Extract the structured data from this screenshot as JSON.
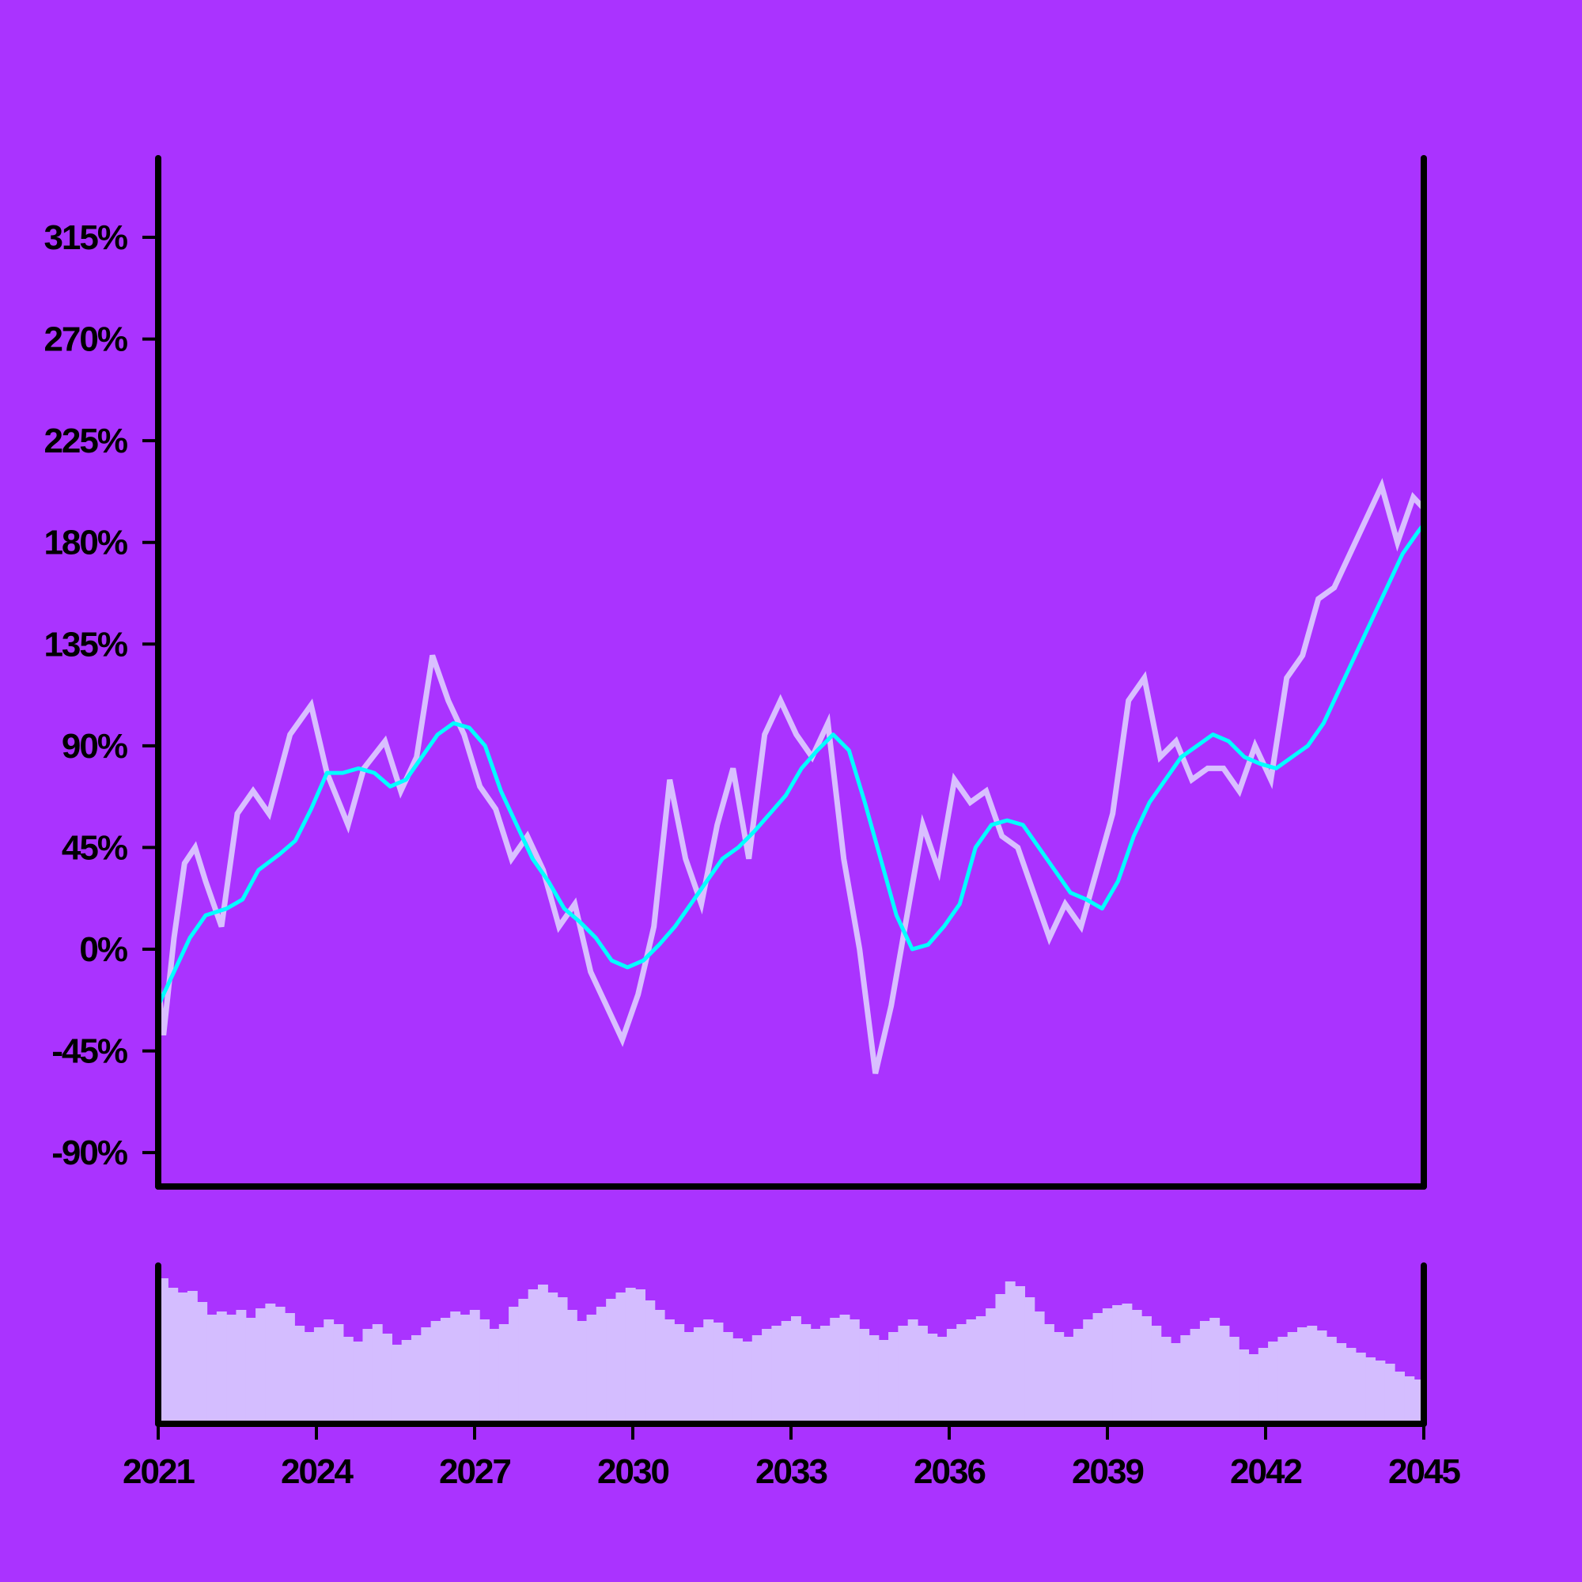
{
  "colors": {
    "background": "#aa33ff",
    "price_line": "#d9bfff",
    "moving_average": "#00ffff",
    "volume_bars": "#d4bdff",
    "axis": "#000000"
  },
  "chart_data": {
    "type": "line",
    "title": "",
    "xlabel": "",
    "ylabel": "",
    "x_range": [
      2021,
      2045
    ],
    "y_range": [
      -105,
      350
    ],
    "x_ticks": [
      "2021",
      "2024",
      "2027",
      "2030",
      "2033",
      "2036",
      "2039",
      "2042",
      "2045"
    ],
    "x_tick_values": [
      2021,
      2024,
      2027,
      2030,
      2033,
      2036,
      2039,
      2042,
      2045
    ],
    "y_ticks": [
      "-90%",
      "-45%",
      "0%",
      "45%",
      "90%",
      "135%",
      "180%",
      "225%",
      "270%",
      "315%"
    ],
    "y_tick_values": [
      -90,
      -45,
      0,
      45,
      90,
      135,
      180,
      225,
      270,
      315
    ],
    "grid": false,
    "legend": "none",
    "series": [
      {
        "role": "value",
        "x": [
          2021.0,
          2021.1,
          2021.3,
          2021.5,
          2021.7,
          2021.9,
          2022.2,
          2022.5,
          2022.8,
          2023.1,
          2023.5,
          2023.9,
          2024.2,
          2024.6,
          2024.9,
          2025.3,
          2025.6,
          2025.9,
          2026.2,
          2026.5,
          2026.8,
          2027.1,
          2027.4,
          2027.7,
          2028.0,
          2028.3,
          2028.6,
          2028.9,
          2029.2,
          2029.5,
          2029.8,
          2030.1,
          2030.4,
          2030.7,
          2031.0,
          2031.3,
          2031.6,
          2031.9,
          2032.2,
          2032.5,
          2032.8,
          2033.1,
          2033.4,
          2033.7,
          2034.0,
          2034.3,
          2034.6,
          2034.9,
          2035.2,
          2035.5,
          2035.8,
          2036.1,
          2036.4,
          2036.7,
          2037.0,
          2037.3,
          2037.6,
          2037.9,
          2038.2,
          2038.5,
          2038.8,
          2039.1,
          2039.4,
          2039.7,
          2040.0,
          2040.3,
          2040.6,
          2040.9,
          2041.2,
          2041.5,
          2041.8,
          2042.1,
          2042.4,
          2042.7,
          2043.0,
          2043.3,
          2043.6,
          2043.9,
          2044.2,
          2044.5,
          2044.8,
          2045.0
        ],
        "values": [
          -15,
          -38,
          5,
          38,
          45,
          30,
          10,
          60,
          70,
          60,
          95,
          108,
          78,
          55,
          80,
          92,
          70,
          85,
          130,
          110,
          95,
          72,
          62,
          40,
          50,
          35,
          10,
          20,
          -10,
          -25,
          -40,
          -20,
          10,
          75,
          40,
          20,
          55,
          80,
          40,
          95,
          110,
          95,
          85,
          100,
          40,
          0,
          -55,
          -25,
          15,
          55,
          35,
          75,
          65,
          70,
          50,
          45,
          25,
          5,
          20,
          10,
          35,
          60,
          110,
          120,
          85,
          92,
          75,
          80,
          80,
          70,
          90,
          75,
          120,
          130,
          155,
          160,
          175,
          190,
          205,
          180,
          200,
          195
        ]
      },
      {
        "role": "moving-average",
        "x": [
          2021.0,
          2021.3,
          2021.6,
          2021.9,
          2022.3,
          2022.6,
          2022.9,
          2023.3,
          2023.6,
          2023.9,
          2024.2,
          2024.5,
          2024.8,
          2025.1,
          2025.4,
          2025.7,
          2026.0,
          2026.3,
          2026.6,
          2026.9,
          2027.2,
          2027.5,
          2027.8,
          2028.1,
          2028.4,
          2028.7,
          2029.0,
          2029.3,
          2029.6,
          2029.9,
          2030.2,
          2030.5,
          2030.8,
          2031.1,
          2031.4,
          2031.7,
          2032.0,
          2032.3,
          2032.6,
          2032.9,
          2033.2,
          2033.5,
          2033.8,
          2034.1,
          2034.4,
          2034.7,
          2035.0,
          2035.3,
          2035.6,
          2035.9,
          2036.2,
          2036.5,
          2036.8,
          2037.1,
          2037.4,
          2037.7,
          2038.0,
          2038.3,
          2038.6,
          2038.9,
          2039.2,
          2039.5,
          2039.8,
          2040.1,
          2040.4,
          2040.7,
          2041.0,
          2041.3,
          2041.6,
          2041.9,
          2042.2,
          2042.5,
          2042.8,
          2043.1,
          2043.4,
          2043.7,
          2044.0,
          2044.3,
          2044.6,
          2044.9,
          2045.0
        ],
        "values": [
          -25,
          -10,
          5,
          15,
          18,
          22,
          35,
          42,
          48,
          62,
          78,
          78,
          80,
          78,
          72,
          75,
          85,
          95,
          100,
          98,
          90,
          70,
          55,
          40,
          30,
          18,
          12,
          5,
          -5,
          -8,
          -5,
          2,
          10,
          20,
          30,
          40,
          45,
          52,
          60,
          68,
          80,
          88,
          95,
          88,
          65,
          40,
          15,
          0,
          2,
          10,
          20,
          45,
          55,
          57,
          55,
          45,
          35,
          25,
          22,
          18,
          30,
          50,
          65,
          75,
          85,
          90,
          95,
          92,
          85,
          82,
          80,
          85,
          90,
          100,
          115,
          130,
          145,
          160,
          175,
          185,
          188
        ]
      }
    ],
    "volume": {
      "type": "bar",
      "x_range": [
        2021,
        2045
      ],
      "values": [
        0.92,
        0.86,
        0.83,
        0.84,
        0.77,
        0.69,
        0.71,
        0.69,
        0.72,
        0.67,
        0.73,
        0.76,
        0.74,
        0.7,
        0.62,
        0.58,
        0.61,
        0.66,
        0.63,
        0.55,
        0.52,
        0.6,
        0.63,
        0.57,
        0.5,
        0.53,
        0.56,
        0.61,
        0.65,
        0.67,
        0.71,
        0.69,
        0.72,
        0.66,
        0.6,
        0.63,
        0.74,
        0.79,
        0.85,
        0.88,
        0.83,
        0.8,
        0.72,
        0.65,
        0.69,
        0.74,
        0.79,
        0.83,
        0.86,
        0.85,
        0.78,
        0.72,
        0.66,
        0.63,
        0.58,
        0.61,
        0.66,
        0.64,
        0.58,
        0.54,
        0.52,
        0.56,
        0.6,
        0.62,
        0.65,
        0.68,
        0.63,
        0.6,
        0.62,
        0.67,
        0.69,
        0.66,
        0.6,
        0.56,
        0.53,
        0.58,
        0.62,
        0.66,
        0.62,
        0.57,
        0.55,
        0.6,
        0.63,
        0.66,
        0.68,
        0.73,
        0.82,
        0.9,
        0.87,
        0.8,
        0.71,
        0.63,
        0.58,
        0.55,
        0.6,
        0.66,
        0.7,
        0.73,
        0.75,
        0.76,
        0.72,
        0.68,
        0.62,
        0.55,
        0.51,
        0.56,
        0.6,
        0.65,
        0.67,
        0.62,
        0.55,
        0.47,
        0.44,
        0.48,
        0.52,
        0.55,
        0.58,
        0.61,
        0.62,
        0.59,
        0.55,
        0.51,
        0.48,
        0.45,
        0.42,
        0.4,
        0.38,
        0.33,
        0.3,
        0.28
      ]
    }
  }
}
